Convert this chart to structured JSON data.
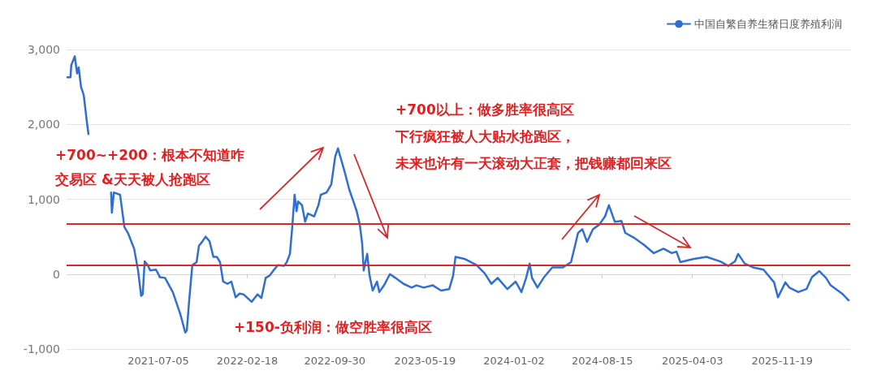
{
  "chart_data": {
    "type": "line",
    "legend": "top right",
    "grid": "y",
    "marker": "none",
    "line_style": "solid",
    "x": [
      "2020-11-14",
      "2020-11-22",
      "2020-11-24",
      "2020-12-03",
      "2020-12-09",
      "2020-12-13",
      "2020-12-19",
      "2020-12-26",
      "2021-01-03",
      "2021-01-07",
      "2021-02-03",
      "2021-03-06",
      "2021-03-08",
      "2021-03-13",
      "2021-03-29",
      "2021-04-09",
      "2021-04-19",
      "2021-05-04",
      "2021-05-14",
      "2021-05-22",
      "2021-05-26",
      "2021-05-31",
      "2021-06-08",
      "2021-06-14",
      "2021-06-29",
      "2021-07-09",
      "2021-07-22",
      "2021-08-11",
      "2021-08-30",
      "2021-09-12",
      "2021-09-16",
      "2021-09-22",
      "2021-09-30",
      "2021-10-11",
      "2021-10-17",
      "2021-10-25",
      "2021-11-03",
      "2021-11-13",
      "2021-11-23",
      "2021-12-02",
      "2021-12-10",
      "2021-12-18",
      "2021-12-29",
      "2022-01-08",
      "2022-01-19",
      "2022-01-29",
      "2022-02-08",
      "2022-03-01",
      "2022-03-16",
      "2022-03-26",
      "2022-04-06",
      "2022-04-16",
      "2022-04-26",
      "2022-05-07",
      "2022-05-23",
      "2022-05-30",
      "2022-06-07",
      "2022-06-13",
      "2022-06-19",
      "2022-06-24",
      "2022-06-28",
      "2022-07-08",
      "2022-07-16",
      "2022-07-23",
      "2022-08-08",
      "2022-08-19",
      "2022-08-25",
      "2022-09-09",
      "2022-09-21",
      "2022-10-01",
      "2022-10-08",
      "2022-10-14",
      "2022-10-26",
      "2022-11-06",
      "2022-11-16",
      "2022-11-25",
      "2022-12-03",
      "2022-12-09",
      "2022-12-13",
      "2022-12-22",
      "2022-12-28",
      "2023-01-05",
      "2023-01-16",
      "2023-01-22",
      "2023-02-03",
      "2023-02-18",
      "2023-03-04",
      "2023-03-25",
      "2023-04-15",
      "2023-04-27",
      "2023-05-16",
      "2023-06-08",
      "2023-06-29",
      "2023-07-20",
      "2023-07-30",
      "2023-08-05",
      "2023-08-30",
      "2023-09-28",
      "2023-10-19",
      "2023-11-05",
      "2023-11-21",
      "2023-12-16",
      "2024-01-06",
      "2024-01-21",
      "2024-02-02",
      "2024-02-11",
      "2024-02-17",
      "2024-03-02",
      "2024-03-19",
      "2024-04-09",
      "2024-05-06",
      "2024-05-27",
      "2024-06-14",
      "2024-06-25",
      "2024-07-07",
      "2024-07-22",
      "2024-08-07",
      "2024-08-22",
      "2024-09-01",
      "2024-09-16",
      "2024-10-03",
      "2024-10-13",
      "2024-11-03",
      "2024-11-30",
      "2024-12-25",
      "2025-01-19",
      "2025-02-09",
      "2025-02-21",
      "2025-03-03",
      "2025-04-04",
      "2025-05-09",
      "2025-06-13",
      "2025-07-04",
      "2025-07-21",
      "2025-07-29",
      "2025-08-15",
      "2025-09-05",
      "2025-10-02",
      "2025-10-29",
      "2025-11-08",
      "2025-11-27",
      "2025-12-07",
      "2025-12-30",
      "2026-01-20",
      "2026-02-03",
      "2026-02-22",
      "2026-03-11",
      "2026-03-23",
      "2026-04-21",
      "2026-05-08"
    ],
    "series": [
      {
        "name": "中国自繁自养生猪日度养殖利润",
        "color": "#2f6fd1",
        "values": [
          2630,
          2630,
          2790,
          2910,
          2680,
          2760,
          2500,
          2390,
          2030,
          1870,
          null,
          1090,
          820,
          1090,
          1060,
          630,
          540,
          340,
          50,
          -290,
          -270,
          170,
          120,
          50,
          60,
          -40,
          -50,
          -240,
          -530,
          -780,
          -750,
          -350,
          120,
          160,
          380,
          430,
          500,
          440,
          230,
          230,
          160,
          -100,
          -130,
          -100,
          -310,
          -260,
          -270,
          -370,
          -270,
          -320,
          -50,
          -20,
          50,
          120,
          110,
          160,
          270,
          630,
          1060,
          840,
          970,
          920,
          700,
          810,
          770,
          920,
          1060,
          1090,
          1200,
          1570,
          1680,
          1570,
          1350,
          1130,
          980,
          840,
          660,
          410,
          50,
          270,
          -20,
          -220,
          -100,
          -240,
          -150,
          0,
          -50,
          -130,
          -180,
          -150,
          -180,
          -150,
          -220,
          -200,
          -20,
          230,
          200,
          120,
          10,
          -130,
          -50,
          -200,
          -100,
          -240,
          -50,
          140,
          -50,
          -180,
          -40,
          90,
          90,
          160,
          550,
          600,
          430,
          600,
          660,
          770,
          920,
          700,
          710,
          550,
          490,
          390,
          280,
          340,
          280,
          300,
          160,
          200,
          230,
          170,
          110,
          170,
          270,
          140,
          90,
          60,
          -110,
          -310,
          -110,
          -180,
          -240,
          -200,
          -40,
          40,
          -50,
          -150,
          -260,
          -350
        ]
      }
    ],
    "xlim": [
      "2020-11-12",
      "2026-05-12"
    ],
    "xticks": [
      {
        "value": "2021-07-05",
        "label": "2021-07-05"
      },
      {
        "value": "2022-02-18",
        "label": "2022-02-18"
      },
      {
        "value": "2022-09-30",
        "label": "2022-09-30"
      },
      {
        "value": "2023-05-19",
        "label": "2023-05-19"
      },
      {
        "value": "2024-01-02",
        "label": "2024-01-02"
      },
      {
        "value": "2024-08-15",
        "label": "2024-08-15"
      },
      {
        "value": "2025-04-03",
        "label": "2025-04-03"
      },
      {
        "value": "2025-11-19",
        "label": "2025-11-19"
      }
    ],
    "ylim": [
      -1000,
      3000
    ],
    "yticks": [
      {
        "value": -1000,
        "label": "-1,000"
      },
      {
        "value": 0,
        "label": "0"
      },
      {
        "value": 1000,
        "label": "1,000"
      },
      {
        "value": 2000,
        "label": "2,000"
      },
      {
        "value": 3000,
        "label": "3,000"
      }
    ],
    "ref_lines": [
      {
        "axis": "y",
        "value": 670,
        "label": null,
        "color": "#d42a2a"
      },
      {
        "axis": "y",
        "value": 120,
        "label": null,
        "color": "#d42a2a"
      }
    ],
    "annotations": [
      "+700~+200：根本不知道咋",
      "交易区 &天天被人抢跑区",
      "+150-负利润：做空胜率很高区",
      "+700以上：做多胜率很高区",
      "下行疯狂被人大贴水抢跑区，",
      "未来也许有一天滚动大正套，把钱赚都回来区"
    ]
  }
}
